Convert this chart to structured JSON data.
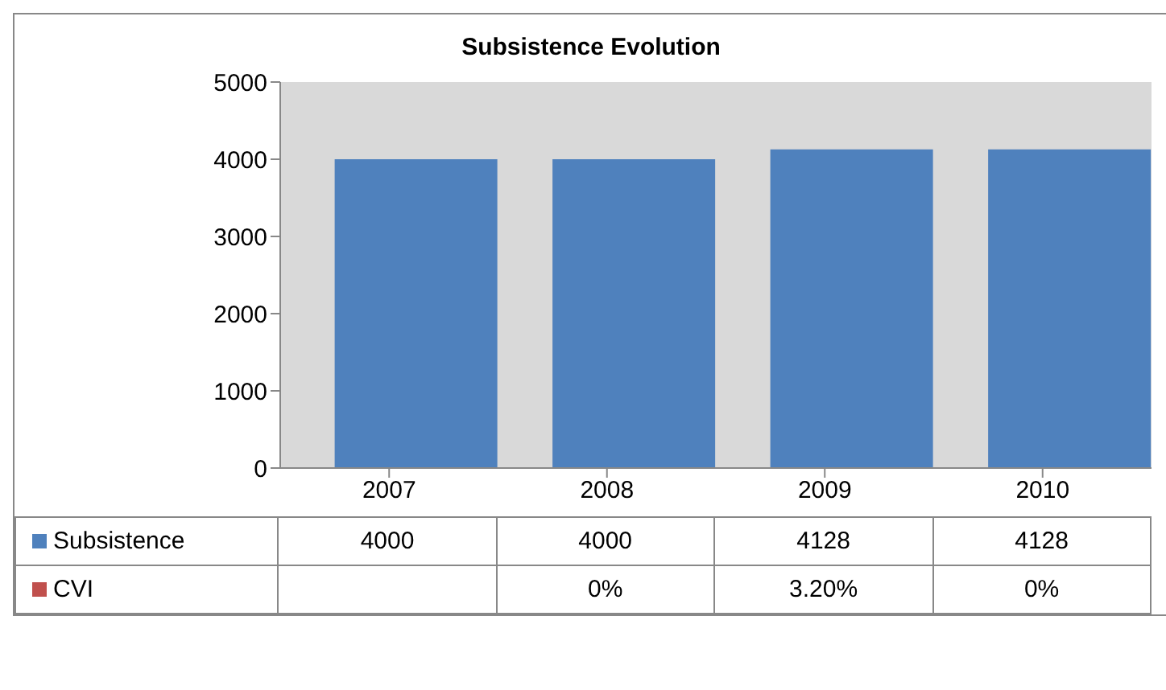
{
  "chart_data": {
    "type": "bar",
    "title": "Subsistence Evolution",
    "categories": [
      "2007",
      "2008",
      "2009",
      "2010"
    ],
    "series": [
      {
        "name": "Subsistence",
        "color": "#4f81bd",
        "values": [
          4000,
          4000,
          4128,
          4128
        ],
        "value_labels": [
          "4000",
          "4000",
          "4128",
          "4128"
        ]
      },
      {
        "name": "CVI",
        "color": "#c0504d",
        "values": [
          null,
          0,
          3.2,
          0
        ],
        "value_labels": [
          null,
          "0%",
          "3.20%",
          "0%"
        ]
      }
    ],
    "ylim": [
      0,
      5000
    ],
    "yticks": [
      0,
      1000,
      2000,
      3000,
      4000,
      5000
    ],
    "legend": "bottom"
  }
}
